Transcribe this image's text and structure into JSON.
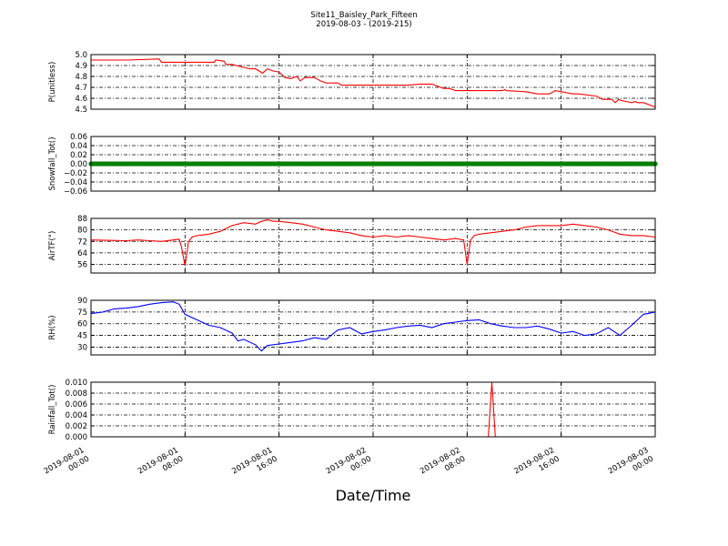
{
  "figure": {
    "title_line1": "Site11_Baisley_Park_Fifteen",
    "title_line2": "2019-08-03 - (2019-215)",
    "xlabel": "Date/Time",
    "x_ticks": [
      {
        "t": 0,
        "line1": "2019-08-01",
        "line2": "00:00"
      },
      {
        "t": 8,
        "line1": "2019-08-01",
        "line2": "08:00"
      },
      {
        "t": 16,
        "line1": "2019-08-01",
        "line2": "16:00"
      },
      {
        "t": 24,
        "line1": "2019-08-02",
        "line2": "00:00"
      },
      {
        "t": 32,
        "line1": "2019-08-02",
        "line2": "08:00"
      },
      {
        "t": 40,
        "line1": "2019-08-02",
        "line2": "16:00"
      },
      {
        "t": 48,
        "line1": "2019-08-03",
        "line2": "00:00"
      }
    ]
  },
  "chart_data": [
    {
      "type": "line",
      "ylabel": "P(unitless)",
      "ylim": [
        4.5,
        5.0
      ],
      "yticks": [
        "4.5",
        "4.6",
        "4.7",
        "4.8",
        "4.9",
        "5.0"
      ],
      "grid": true,
      "series": [
        {
          "color": "#ff0000",
          "x": [
            0,
            3,
            5.8,
            6,
            10.5,
            10.6,
            11.3,
            11.5,
            12,
            13.5,
            14,
            14.6,
            15,
            15.5,
            16,
            16.5,
            17,
            17.5,
            17.8,
            18.2,
            19,
            19.5,
            20,
            21,
            21.3,
            24,
            26,
            27,
            28,
            29,
            30,
            30.5,
            31,
            35,
            35.2,
            35.3,
            37,
            38,
            38.5,
            39,
            39.5,
            41,
            41.5,
            43,
            43.5,
            44.3,
            44.6,
            44.9,
            45.1,
            46,
            46.3,
            46.5,
            47,
            48
          ],
          "y": [
            4.95,
            4.95,
            4.96,
            4.93,
            4.93,
            4.95,
            4.94,
            4.91,
            4.91,
            4.87,
            4.87,
            4.83,
            4.87,
            4.85,
            4.84,
            4.79,
            4.78,
            4.8,
            4.76,
            4.79,
            4.79,
            4.76,
            4.74,
            4.74,
            4.72,
            4.72,
            4.72,
            4.72,
            4.73,
            4.73,
            4.69,
            4.69,
            4.67,
            4.67,
            4.68,
            4.67,
            4.66,
            4.64,
            4.64,
            4.64,
            4.67,
            4.64,
            4.64,
            4.62,
            4.59,
            4.59,
            4.56,
            4.59,
            4.58,
            4.56,
            4.57,
            4.56,
            4.56,
            4.52
          ]
        }
      ]
    },
    {
      "type": "scatter",
      "ylabel": "Snowfall_Tot()",
      "ylim": [
        -0.06,
        0.06
      ],
      "yticks": [
        "−0.06",
        "−0.04",
        "−0.02",
        "0.00",
        "0.02",
        "0.04",
        "0.06"
      ],
      "grid": true,
      "series": [
        {
          "color": "#008000",
          "x": [
            0,
            48
          ],
          "y": [
            0,
            0
          ]
        }
      ]
    },
    {
      "type": "line",
      "ylabel": "AirTF(°)",
      "ylim": [
        50,
        88
      ],
      "yticks": [
        "56",
        "64",
        "72",
        "80",
        "88"
      ],
      "grid": true,
      "series": [
        {
          "color": "#ff0000",
          "x": [
            0,
            3,
            4,
            5,
            6,
            7.5,
            7.7,
            8.0,
            8.3,
            8.6,
            9,
            10,
            11,
            12,
            13,
            14,
            14.5,
            15,
            15.5,
            16,
            17,
            18,
            19,
            20,
            21,
            22,
            23,
            24,
            25,
            26,
            27,
            28,
            29,
            30,
            31,
            31.7,
            32.0,
            32.3,
            32.6,
            33,
            34,
            35,
            36,
            37,
            38,
            39,
            40,
            41,
            42,
            43,
            44,
            45,
            46,
            47,
            48
          ],
          "y": [
            73,
            72.5,
            73,
            72.5,
            72,
            73.5,
            68,
            55,
            72,
            75,
            76,
            77,
            79,
            83,
            85,
            84,
            86,
            87,
            86,
            86,
            85,
            84,
            82,
            80,
            79,
            78,
            76,
            75,
            76,
            75,
            76,
            75,
            74,
            73,
            74,
            73,
            56,
            73,
            76,
            77,
            78,
            79,
            80,
            82,
            83,
            83,
            83,
            84,
            83,
            82,
            80,
            77,
            76,
            76,
            75
          ]
        }
      ]
    },
    {
      "type": "line",
      "ylabel": "RH(%)",
      "ylim": [
        20,
        90
      ],
      "yticks": [
        "30",
        "45",
        "60",
        "75",
        "90"
      ],
      "grid": true,
      "series": [
        {
          "color": "#0000ff",
          "x": [
            0,
            1,
            2,
            3,
            4,
            5,
            6,
            7,
            7.5,
            8,
            9,
            10,
            11,
            12,
            12.5,
            13,
            14,
            14.5,
            15,
            16,
            17,
            18,
            19,
            20,
            21,
            22,
            23,
            24,
            25,
            26,
            27,
            28,
            29,
            30,
            31,
            32,
            33,
            34,
            35,
            36,
            37,
            38,
            39,
            40,
            41,
            42,
            43,
            44,
            45,
            46,
            47,
            48
          ],
          "y": [
            73,
            75,
            79,
            80,
            82,
            85,
            87,
            88,
            85,
            72,
            65,
            58,
            55,
            48,
            38,
            40,
            33,
            25,
            32,
            34,
            36,
            38,
            42,
            40,
            52,
            55,
            47,
            50,
            52,
            55,
            57,
            58,
            55,
            60,
            62,
            64,
            65,
            60,
            57,
            55,
            55,
            57,
            53,
            48,
            50,
            45,
            47,
            55,
            45,
            58,
            72,
            75
          ]
        }
      ]
    },
    {
      "type": "line",
      "ylabel": "Rainfall_Tot()",
      "ylim": [
        0,
        0.01
      ],
      "yticks": [
        "0.000",
        "0.002",
        "0.004",
        "0.006",
        "0.008",
        "0.010"
      ],
      "grid": true,
      "series": [
        {
          "color": "#ff0000",
          "x": [
            0,
            33.8,
            34.1,
            34.4,
            48
          ],
          "y": [
            0,
            0,
            0.01,
            0,
            0
          ]
        }
      ]
    }
  ]
}
